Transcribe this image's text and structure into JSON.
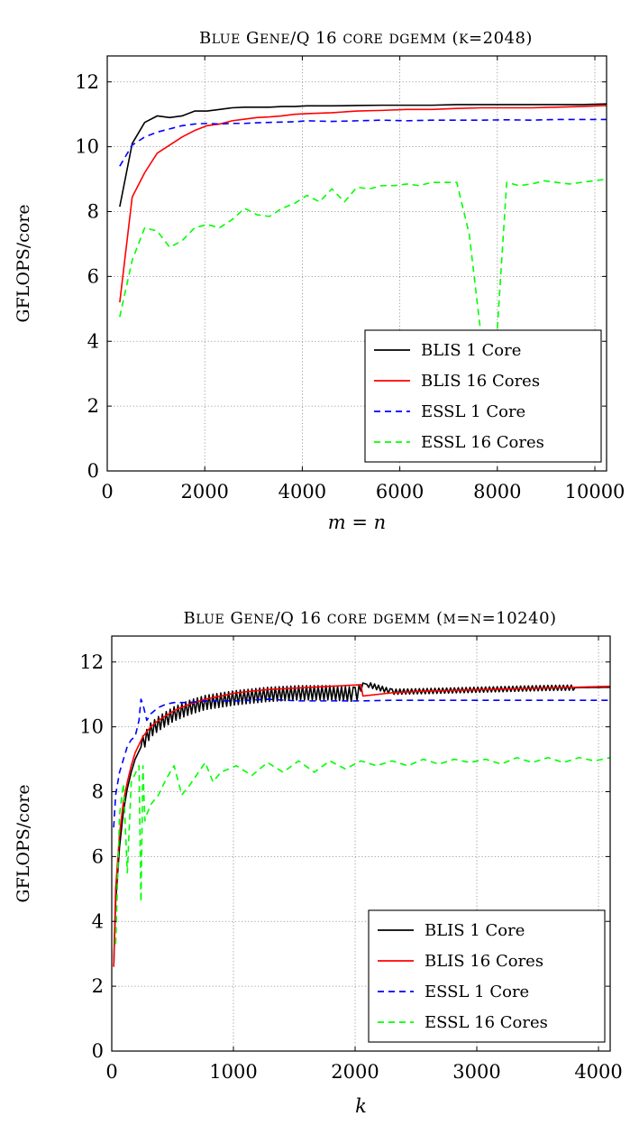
{
  "chart_data": [
    {
      "type": "line",
      "title": "Blue Gene/Q 16 core dgemm (k=2048)",
      "xlabel": "m = n",
      "ylabel": "GFLOPS/core",
      "xlim": [
        0,
        10240
      ],
      "ylim": [
        0,
        12.8
      ],
      "xticks": [
        0,
        2000,
        4000,
        6000,
        8000,
        10000
      ],
      "yticks": [
        0,
        2,
        4,
        6,
        8,
        10,
        12
      ],
      "grid": "dotted",
      "legend_position": "bottom-right",
      "series": [
        {
          "name": "BLIS 1 Core",
          "color": "#000000",
          "dash": "solid",
          "x": [
            256,
            512,
            768,
            1024,
            1280,
            1536,
            1792,
            2048,
            2304,
            2560,
            2816,
            3072,
            3328,
            3584,
            3840,
            4096,
            4608,
            5120,
            5632,
            6144,
            6656,
            7168,
            7680,
            8192,
            8704,
            9216,
            9728,
            10240
          ],
          "y": [
            8.15,
            10.1,
            10.75,
            10.95,
            10.9,
            10.95,
            11.1,
            11.1,
            11.15,
            11.2,
            11.22,
            11.22,
            11.22,
            11.24,
            11.24,
            11.26,
            11.26,
            11.27,
            11.28,
            11.28,
            11.28,
            11.3,
            11.3,
            11.3,
            11.3,
            11.3,
            11.3,
            11.32
          ]
        },
        {
          "name": "BLIS 16 Cores",
          "color": "#ff0000",
          "dash": "solid",
          "x": [
            256,
            512,
            768,
            1024,
            1280,
            1536,
            1792,
            2048,
            2304,
            2560,
            2816,
            3072,
            3328,
            3584,
            3840,
            4096,
            4608,
            5120,
            5632,
            6144,
            6656,
            7168,
            7680,
            8192,
            8704,
            9216,
            9728,
            10240
          ],
          "y": [
            5.2,
            8.45,
            9.2,
            9.8,
            10.05,
            10.3,
            10.5,
            10.65,
            10.7,
            10.8,
            10.85,
            10.9,
            10.92,
            10.95,
            11.0,
            11.02,
            11.05,
            11.1,
            11.12,
            11.15,
            11.15,
            11.18,
            11.2,
            11.2,
            11.2,
            11.22,
            11.24,
            11.27
          ]
        },
        {
          "name": "ESSL 1 Core",
          "color": "#0000ff",
          "dash": "dashed",
          "x": [
            256,
            512,
            768,
            1024,
            1280,
            1536,
            1792,
            2048,
            2304,
            2560,
            2816,
            3072,
            3328,
            3584,
            3840,
            4096,
            4608,
            5120,
            5632,
            6144,
            6656,
            7168,
            7680,
            8192,
            8704,
            9216,
            9728,
            10240
          ],
          "y": [
            9.4,
            10.05,
            10.3,
            10.45,
            10.55,
            10.65,
            10.7,
            10.72,
            10.7,
            10.72,
            10.72,
            10.74,
            10.75,
            10.76,
            10.77,
            10.8,
            10.78,
            10.8,
            10.82,
            10.8,
            10.82,
            10.82,
            10.82,
            10.83,
            10.82,
            10.84,
            10.84,
            10.84
          ]
        },
        {
          "name": "ESSL 16 Cores",
          "color": "#00ff00",
          "dash": "dashed",
          "x": [
            256,
            512,
            768,
            1024,
            1280,
            1536,
            1792,
            2048,
            2304,
            2560,
            2816,
            3072,
            3328,
            3584,
            3840,
            4096,
            4352,
            4608,
            4864,
            5120,
            5376,
            5632,
            5888,
            6144,
            6400,
            6656,
            6912,
            7168,
            7424,
            7680,
            7936,
            8192,
            8448,
            8704,
            8960,
            9216,
            9472,
            9728,
            9984,
            10240
          ],
          "y": [
            4.75,
            6.5,
            7.5,
            7.4,
            6.9,
            7.1,
            7.5,
            7.6,
            7.5,
            7.75,
            8.1,
            7.9,
            7.85,
            8.1,
            8.25,
            8.5,
            8.3,
            8.7,
            8.3,
            8.75,
            8.7,
            8.8,
            8.8,
            8.85,
            8.8,
            8.9,
            8.9,
            8.9,
            7.3,
            4.0,
            2.9,
            8.9,
            8.8,
            8.85,
            8.95,
            8.9,
            8.85,
            8.9,
            8.95,
            9.0
          ]
        }
      ]
    },
    {
      "type": "line",
      "title": "Blue Gene/Q 16 core dgemm (m=n=10240)",
      "xlabel": "k",
      "ylabel": "GFLOPS/core",
      "xlim": [
        0,
        4096
      ],
      "ylim": [
        0,
        12.8
      ],
      "xticks": [
        0,
        1000,
        2000,
        3000,
        4000
      ],
      "yticks": [
        0,
        2,
        4,
        6,
        8,
        10,
        12
      ],
      "grid": "dotted",
      "legend_position": "bottom-right",
      "series": [
        {
          "name": "BLIS 1 Core",
          "color": "#000000",
          "dash": "solid",
          "x": [
            16,
            32,
            64,
            96,
            128,
            160,
            192,
            256,
            320,
            384,
            512,
            640,
            768,
            1024,
            1280,
            1536,
            1792,
            2000,
            2048,
            2064,
            2304,
            2560,
            3072,
            3584,
            4096
          ],
          "y": [
            2.6,
            4.6,
            6.3,
            7.4,
            8.1,
            8.6,
            9.0,
            9.5,
            9.9,
            10.1,
            10.4,
            10.6,
            10.75,
            10.9,
            11.0,
            11.05,
            11.05,
            11.0,
            11.1,
            11.35,
            11.08,
            11.1,
            11.15,
            11.2,
            11.22
          ],
          "oscillation": true
        },
        {
          "name": "BLIS 16 Cores",
          "color": "#ff0000",
          "dash": "solid",
          "x": [
            16,
            32,
            64,
            96,
            128,
            160,
            192,
            256,
            320,
            384,
            512,
            640,
            768,
            1024,
            1280,
            1536,
            1792,
            2048,
            2064,
            2304,
            2560,
            3072,
            3584,
            4096
          ],
          "y": [
            2.6,
            5.0,
            6.7,
            7.7,
            8.3,
            8.8,
            9.2,
            9.7,
            10.0,
            10.2,
            10.5,
            10.7,
            10.85,
            11.05,
            11.15,
            11.2,
            11.25,
            11.3,
            10.95,
            11.05,
            11.1,
            11.15,
            11.2,
            11.25
          ]
        },
        {
          "name": "ESSL 1 Core",
          "color": "#0000ff",
          "dash": "dashed",
          "x": [
            16,
            32,
            64,
            96,
            128,
            160,
            192,
            224,
            240,
            256,
            288,
            320,
            384,
            448,
            512,
            640,
            768,
            1024,
            1280,
            1536,
            1792,
            2048,
            2304,
            2560,
            3072,
            3584,
            4096
          ],
          "y": [
            6.9,
            7.9,
            8.6,
            9.0,
            9.4,
            9.6,
            9.7,
            10.2,
            10.85,
            10.7,
            10.2,
            10.4,
            10.6,
            10.7,
            10.75,
            10.75,
            10.8,
            10.8,
            10.85,
            10.8,
            10.8,
            10.8,
            10.82,
            10.82,
            10.82,
            10.82,
            10.82
          ]
        },
        {
          "name": "ESSL 16 Cores",
          "color": "#00ff00",
          "dash": "dashed",
          "x": [
            32,
            64,
            96,
            128,
            160,
            192,
            224,
            240,
            256,
            272,
            288,
            320,
            384,
            448,
            512,
            576,
            640,
            768,
            832,
            896,
            1024,
            1152,
            1280,
            1408,
            1536,
            1664,
            1792,
            1920,
            2048,
            2176,
            2304,
            2432,
            2560,
            2688,
            2816,
            2944,
            3072,
            3200,
            3328,
            3456,
            3584,
            3712,
            3840,
            3968,
            4096
          ],
          "y": [
            3.3,
            7.3,
            8.25,
            5.5,
            8.3,
            8.55,
            8.8,
            4.6,
            8.8,
            7.1,
            7.3,
            7.6,
            7.9,
            8.4,
            8.8,
            7.9,
            8.2,
            8.9,
            8.3,
            8.6,
            8.8,
            8.5,
            8.9,
            8.6,
            8.95,
            8.6,
            8.95,
            8.7,
            8.95,
            8.8,
            8.95,
            8.8,
            9.0,
            8.85,
            9.0,
            8.9,
            9.0,
            8.85,
            9.05,
            8.9,
            9.05,
            8.9,
            9.05,
            8.95,
            9.05
          ]
        }
      ]
    }
  ]
}
